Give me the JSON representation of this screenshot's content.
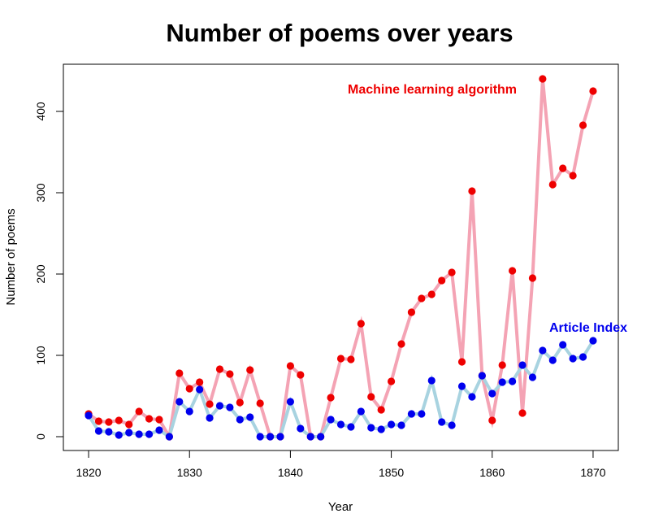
{
  "chart_data": {
    "type": "line",
    "title": "Number of poems over years",
    "xlabel": "Year",
    "ylabel": "Number of poems",
    "xlim": [
      1817.5,
      1872.5
    ],
    "ylim": [
      -17,
      458
    ],
    "x_ticks": [
      1820,
      1830,
      1840,
      1850,
      1860,
      1870
    ],
    "y_ticks": [
      0,
      100,
      200,
      300,
      400
    ],
    "grid": false,
    "x": [
      1820,
      1821,
      1822,
      1823,
      1824,
      1825,
      1826,
      1827,
      1828,
      1829,
      1830,
      1831,
      1832,
      1833,
      1834,
      1835,
      1836,
      1837,
      1838,
      1839,
      1840,
      1841,
      1842,
      1843,
      1844,
      1845,
      1846,
      1847,
      1848,
      1849,
      1850,
      1851,
      1852,
      1853,
      1854,
      1855,
      1856,
      1857,
      1858,
      1859,
      1860,
      1861,
      1862,
      1863,
      1864,
      1865,
      1866,
      1867,
      1868,
      1869,
      1870
    ],
    "series": [
      {
        "name": "Machine learning algorithm",
        "line_color": "#f4a3b4",
        "point_color": "#ee0000",
        "values": [
          28,
          19,
          18,
          20,
          15,
          31,
          22,
          21,
          0,
          78,
          59,
          67,
          40,
          83,
          77,
          42,
          82,
          41,
          0,
          0,
          87,
          76,
          0,
          0,
          48,
          96,
          95,
          139,
          49,
          33,
          68,
          114,
          153,
          170,
          175,
          192,
          202,
          92,
          302,
          75,
          20,
          88,
          204,
          29,
          195,
          440,
          310,
          330,
          321,
          383,
          425
        ]
      },
      {
        "name": "Article Index",
        "line_color": "#a8d3e0",
        "point_color": "#0000ee",
        "values": [
          26,
          7,
          6,
          2,
          5,
          3,
          3,
          8,
          0,
          43,
          31,
          58,
          23,
          38,
          36,
          21,
          24,
          0,
          0,
          0,
          43,
          10,
          0,
          0,
          21,
          15,
          12,
          31,
          11,
          9,
          15,
          14,
          28,
          28,
          69,
          18,
          14,
          62,
          49,
          75,
          53,
          67,
          68,
          88,
          73,
          106,
          94,
          113,
          96,
          98,
          118
        ]
      }
    ],
    "annotations": [
      {
        "text": "Machine learning algorithm",
        "color": "#ee0000"
      },
      {
        "text": "Article Index",
        "color": "#0000ee"
      }
    ]
  }
}
